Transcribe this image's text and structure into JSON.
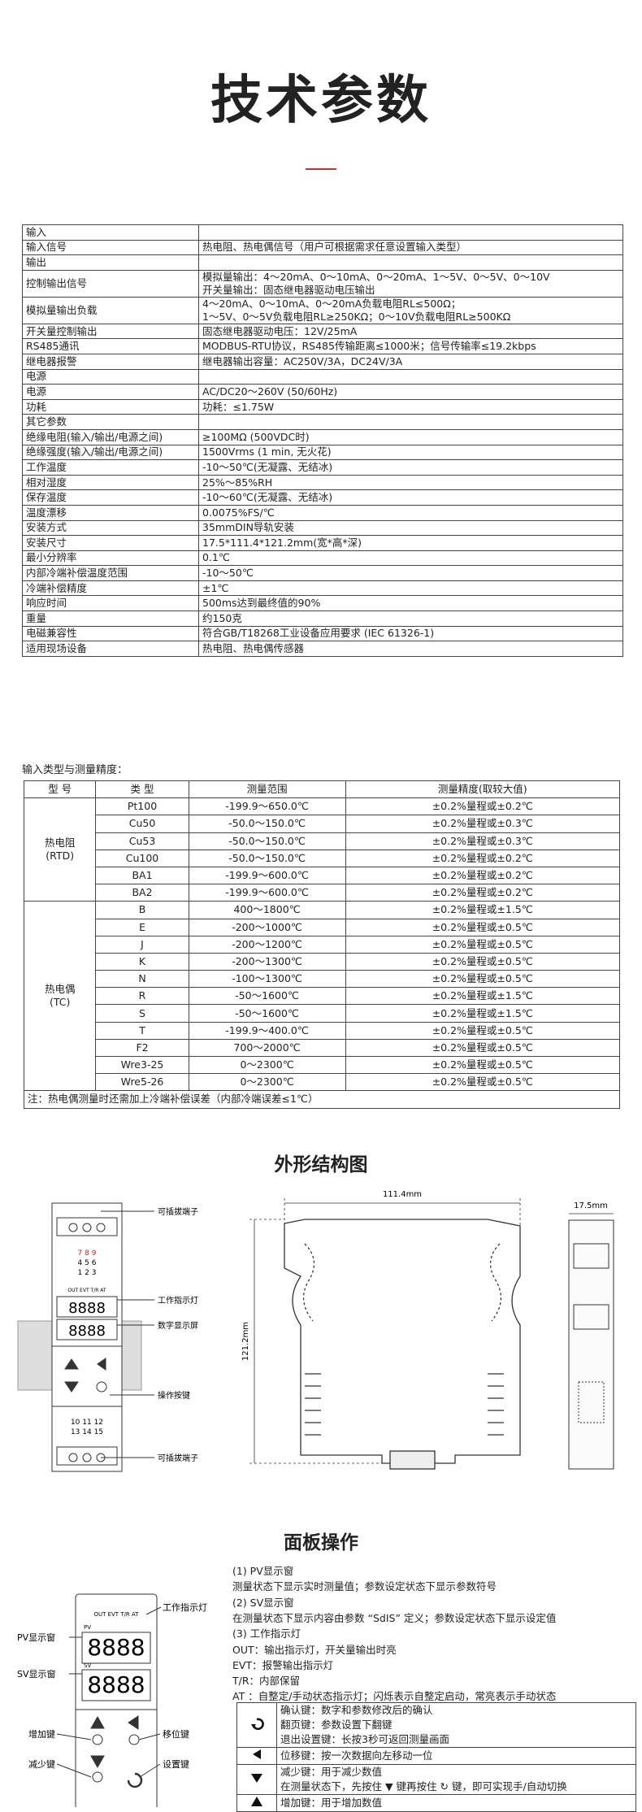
{
  "title": "技术参数",
  "spec_table": {
    "rows": [
      [
        "输入"
      ],
      [
        "输入信号",
        "热电阻、热电偶信号（用户可根据需求任意设置输入类型）"
      ],
      [
        "输出"
      ],
      [
        "控制输出信号",
        "模拟量输出：4～20mA、0～10mA、0～20mA、1～5V、0～5V、0～10V",
        "开关量输出：固态继电器驱动电压输出"
      ],
      [
        "模拟量输出负载",
        "4～20mA、0～10mA、0～20mA负载电阻RL≤500Ω；",
        "1～5V、0～5V负载电阻RL≥250KΩ；0～10V负载电阻RL≥500KΩ"
      ],
      [
        "开关量控制输出",
        "固态继电器驱动电压：12V/25mA"
      ],
      [
        "RS485通讯",
        "MODBUS-RTU协议，RS485传输距离≤1000米；信号传输率≤19.2kbps"
      ],
      [
        "继电器报警",
        "继电器输出容量：AC250V/3A，DC24V/3A"
      ],
      [
        "电源"
      ],
      [
        "电源",
        "AC/DC20～260V (50/60Hz)"
      ],
      [
        "功耗",
        "功耗：≤1.75W"
      ],
      [
        "其它参数"
      ],
      [
        "绝缘电阻(输入/输出/电源之间)",
        "≥100MΩ (500VDC时)"
      ],
      [
        "绝缘强度(输入/输出/电源之间)",
        "1500Vrms (1 min, 无火花)"
      ],
      [
        "工作温度",
        "-10～50℃(无凝露、无结冰)"
      ],
      [
        "相对湿度",
        "25%～85%RH"
      ],
      [
        "保存温度",
        "-10～60℃(无凝露、无结冰)"
      ],
      [
        "温度漂移",
        "0.0075%FS/℃"
      ],
      [
        "安装方式",
        "35mmDIN导轨安装"
      ],
      [
        "安装尺寸",
        "17.5*111.4*121.2mm(宽*高*深)"
      ],
      [
        "最小分辨率",
        "0.1℃"
      ],
      [
        "内部冷端补偿温度范围",
        "-10～50℃"
      ],
      [
        "冷端补偿精度",
        "±1℃"
      ],
      [
        "响应时间",
        "500ms达到最终值的90%"
      ],
      [
        "重量",
        "约150克"
      ],
      [
        "电磁兼容性",
        "符合GB/T18268工业设备应用要求 (IEC 61326-1)"
      ],
      [
        "适用现场设备",
        "热电阻、热电偶传感器"
      ]
    ]
  },
  "accuracy": {
    "title": "输入类型与测量精度：",
    "header": [
      "型 号",
      "类 型",
      "测量范围",
      "测量精度(取较大值)"
    ],
    "groups": [
      {
        "name": "热电阻",
        "code": "(RTD)",
        "rows": [
          [
            "Pt100",
            "-199.9～650.0℃",
            "±0.2%量程或±0.2℃"
          ],
          [
            "Cu50",
            "-50.0～150.0℃",
            "±0.2%量程或±0.3℃"
          ],
          [
            "Cu53",
            "-50.0～150.0℃",
            "±0.2%量程或±0.3℃"
          ],
          [
            "Cu100",
            "-50.0～150.0℃",
            "±0.2%量程或±0.2℃"
          ],
          [
            "BA1",
            "-199.9～600.0℃",
            "±0.2%量程或±0.2℃"
          ],
          [
            "BA2",
            "-199.9～600.0℃",
            "±0.2%量程或±0.2℃"
          ]
        ]
      },
      {
        "name": "热电偶",
        "code": "(TC)",
        "rows": [
          [
            "B",
            "400～1800℃",
            "±0.2%量程或±1.5℃"
          ],
          [
            "E",
            "-200～1000℃",
            "±0.2%量程或±0.5℃"
          ],
          [
            "J",
            "-200～1200℃",
            "±0.2%量程或±0.5℃"
          ],
          [
            "K",
            "-200～1300℃",
            "±0.2%量程或±0.5℃"
          ],
          [
            "N",
            "-100～1300℃",
            "±0.2%量程或±0.5℃"
          ],
          [
            "R",
            "-50～1600℃",
            "±0.2%量程或±1.5℃"
          ],
          [
            "S",
            "-50～1600℃",
            "±0.2%量程或±1.5℃"
          ],
          [
            "T",
            "-199.9～400.0℃",
            "±0.2%量程或±0.5℃"
          ],
          [
            "F2",
            "700～2000℃",
            "±0.2%量程或±0.5℃"
          ],
          [
            "Wre3-25",
            "0～2300℃",
            "±0.2%量程或±0.5℃"
          ],
          [
            "Wre5-26",
            "0～2300℃",
            "±0.2%量程或±0.5℃"
          ]
        ]
      }
    ],
    "note": "注：热电偶测量时还需加上冷端补偿误差（内部冷端误差≤1℃）"
  },
  "structure": {
    "title": "外形结构图",
    "labels": [
      "可插拔端子",
      "工作指示灯",
      "数字显示屏",
      "操作按键",
      "可插拔端子"
    ],
    "dimensions": {
      "length": "111.4mm",
      "height": "121.2mm",
      "width": "17.5mm"
    },
    "terminals_top": [
      "7 8 9",
      "4 5 6",
      "1 2 3"
    ],
    "terminals_bottom": [
      "10 11 12",
      "13 14 15"
    ],
    "indicators": "OUT EVT T/R AT",
    "pv": "PV",
    "sv": "SV",
    "digits": "8888"
  },
  "panel": {
    "title": "面板操作",
    "labels": {
      "pv": "PV显示窗",
      "sv": "SV显示窗",
      "lamp": "工作指示灯",
      "up": "增加键",
      "shift": "移位键",
      "down": "减少键",
      "set": "设置键"
    },
    "notes": [
      "(1) PV显示窗",
      "测量状态下显示实时测量值；参数设定状态下显示参数符号",
      "(2) SV显示窗",
      "在测量状态下显示内容由参数 “SdIS” 定义；参数设定状态下显示设定值",
      "(3) 工作指示灯",
      "OUT：输出指示灯，开关量输出时亮",
      "EVT：报警输出指示灯",
      "T/R：内部保留",
      "AT ：自整定/手动状态指示灯；闪烁表示自整定启动，常亮表示手动状态"
    ],
    "keys": [
      [
        "确认键：数字和参数修改后的确认",
        "翻页键：参数设置下翻键",
        "退出设置键：长按3秒可返回测量画面"
      ],
      [
        "位移键：按一次数据向左移动一位"
      ],
      [
        "减少键：用于减少数值",
        "在测量状态下，先按住 ▼ 键再按住 ↻ 键，即可实现手/自动切换"
      ],
      [
        "增加键：用于增加数值"
      ]
    ]
  }
}
